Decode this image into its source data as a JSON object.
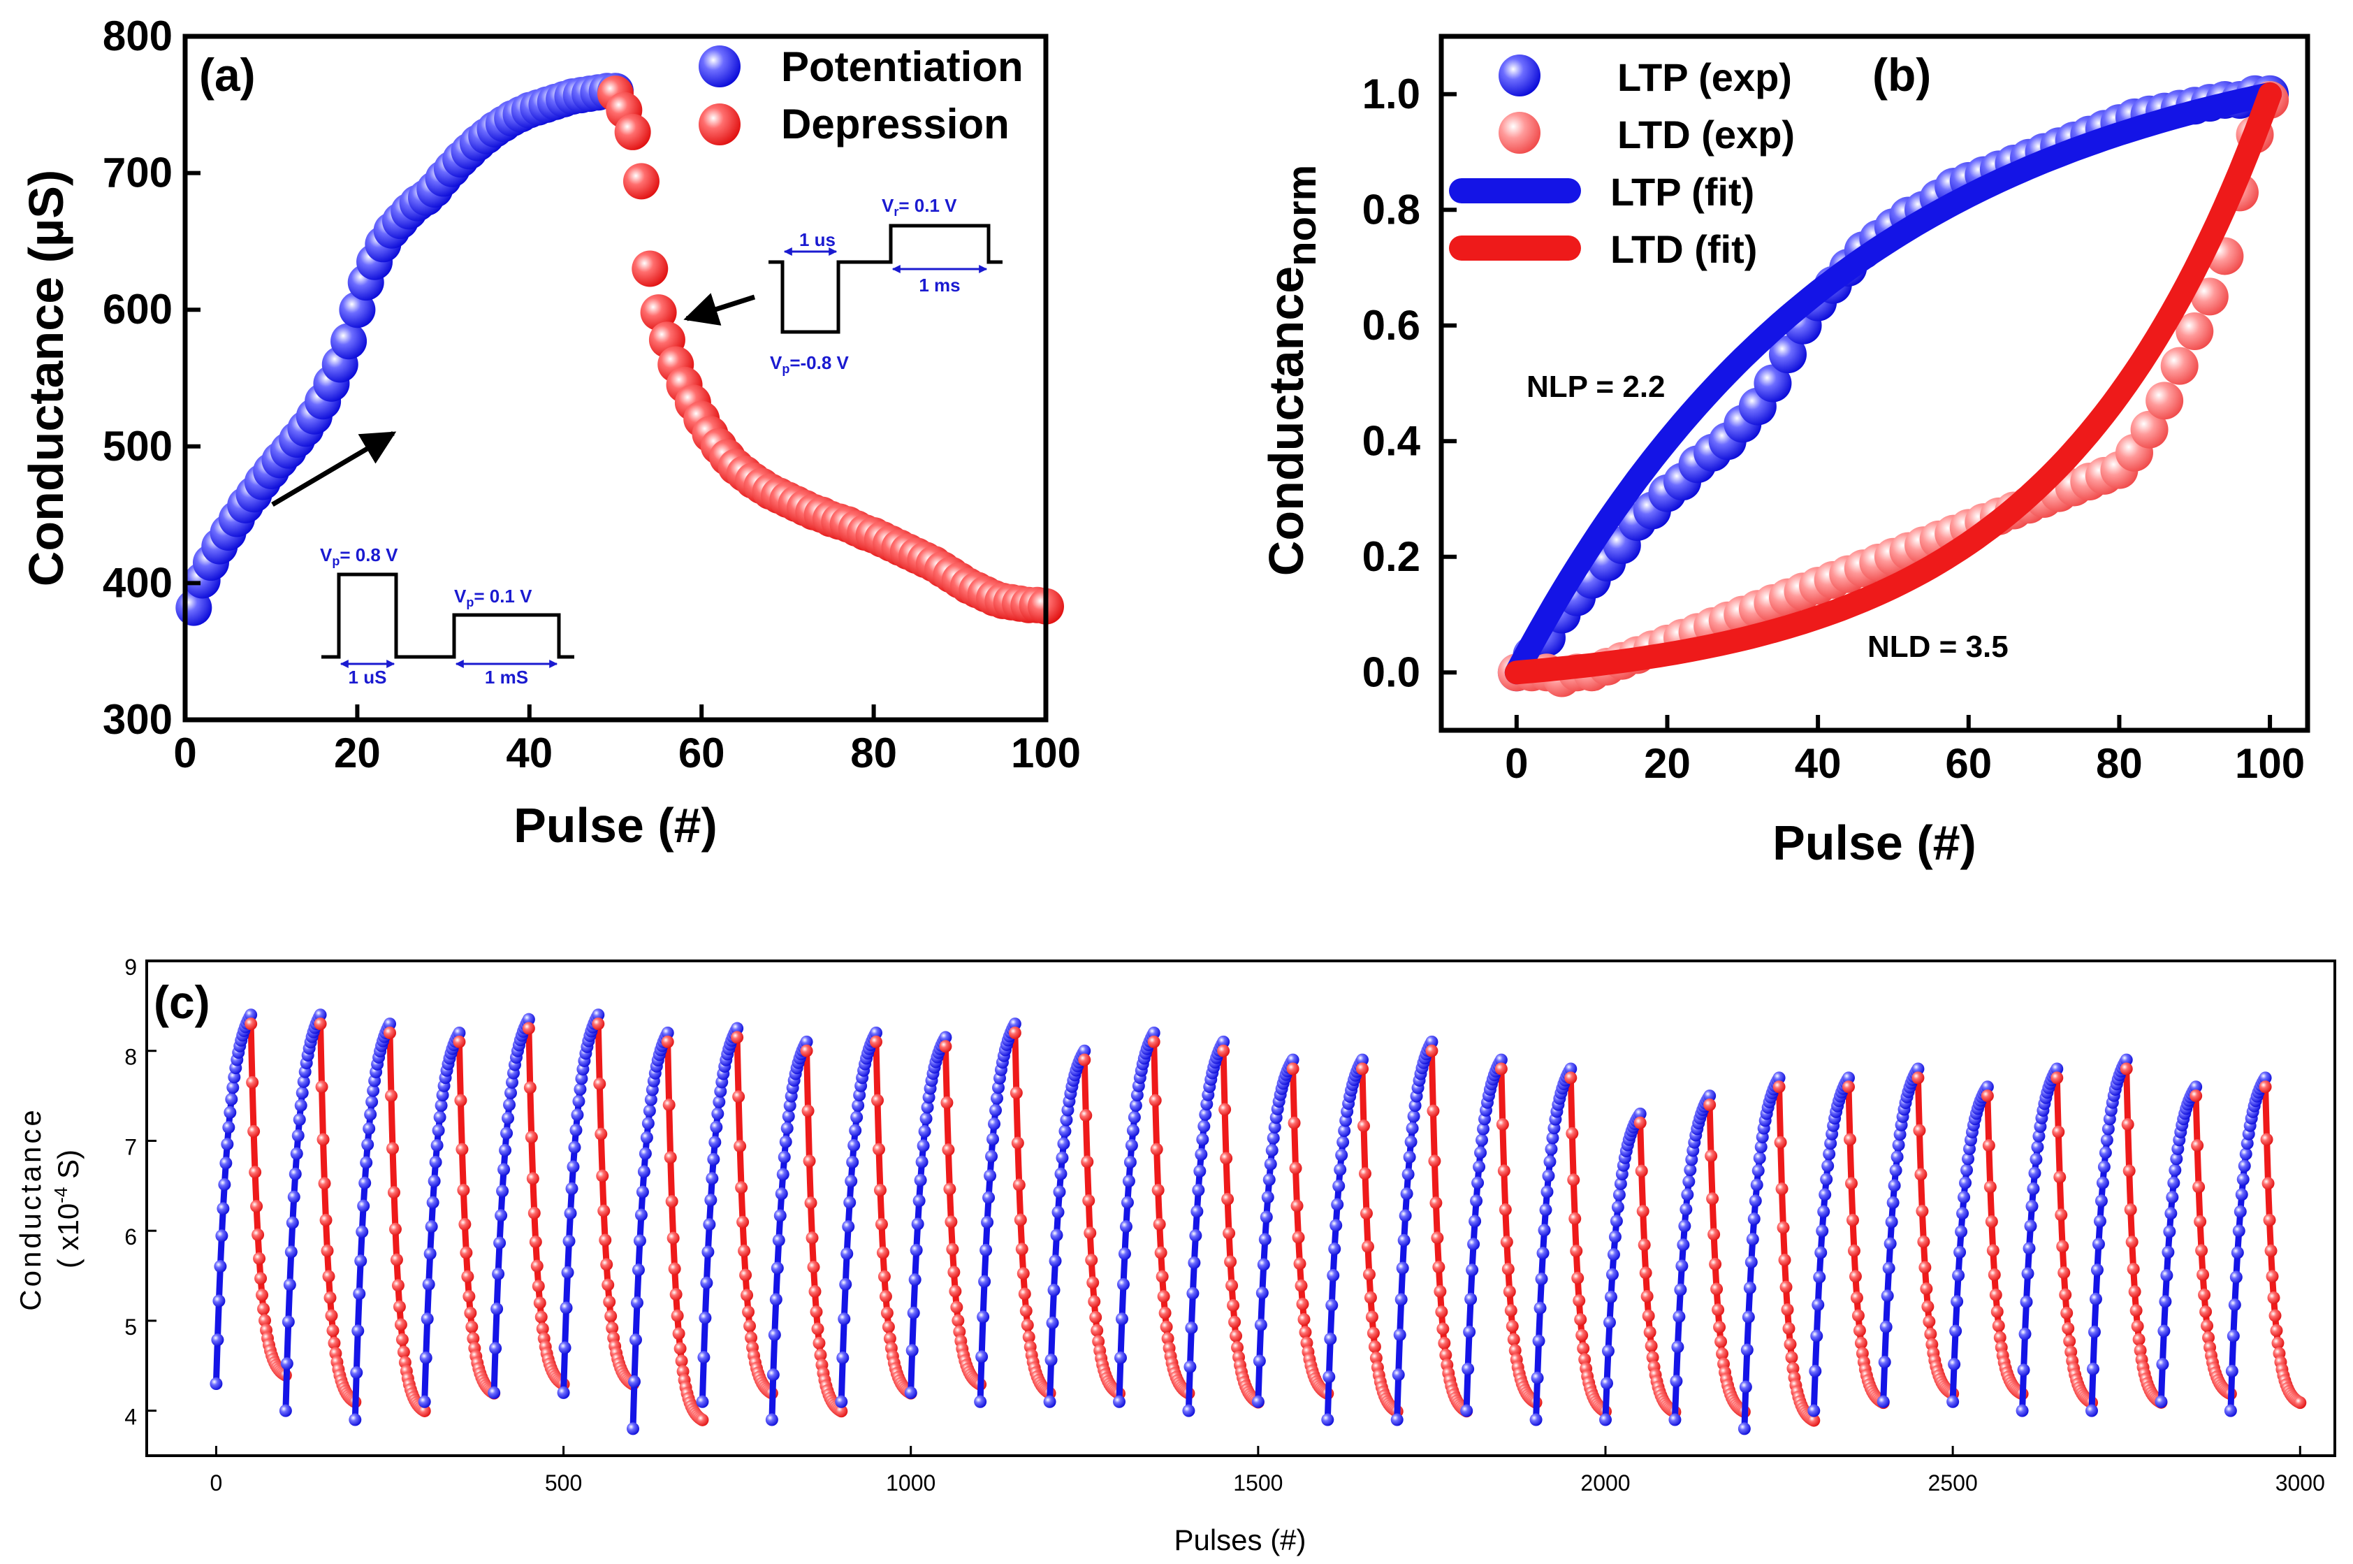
{
  "colors": {
    "blue": "#1414e6",
    "red": "#ee1a1a",
    "black": "#000000",
    "inset_blue": "#1a1ad0"
  },
  "chart_data": [
    {
      "panel": "(a)",
      "type": "scatter",
      "xlabel": "Pulse (#)",
      "ylabel": "Conductance (µS)",
      "xlim": [
        0,
        100
      ],
      "ylim": [
        300,
        800
      ],
      "xticks": [
        "0",
        "20",
        "40",
        "60",
        "80",
        "100"
      ],
      "yticks": [
        "300",
        "400",
        "500",
        "600",
        "700",
        "800"
      ],
      "legend": [
        "Potentiation",
        "Depression"
      ],
      "series": [
        {
          "name": "Potentiation",
          "x": [
            1,
            2,
            3,
            4,
            5,
            6,
            7,
            8,
            9,
            10,
            11,
            12,
            13,
            14,
            15,
            16,
            17,
            18,
            19,
            20,
            21,
            22,
            23,
            24,
            25,
            26,
            27,
            28,
            29,
            30,
            31,
            32,
            33,
            34,
            35,
            36,
            37,
            38,
            39,
            40,
            41,
            42,
            43,
            44,
            45,
            46,
            47,
            48,
            49,
            50
          ],
          "values": [
            382,
            402,
            415,
            427,
            437,
            447,
            457,
            465,
            474,
            482,
            490,
            497,
            505,
            513,
            522,
            533,
            546,
            560,
            577,
            600,
            620,
            635,
            648,
            658,
            665,
            672,
            678,
            682,
            688,
            696,
            703,
            710,
            716,
            722,
            727,
            732,
            736,
            740,
            743,
            746,
            748,
            750,
            752,
            754,
            756,
            757,
            758,
            759,
            760,
            760
          ]
        },
        {
          "name": "Depression",
          "x": [
            50,
            51,
            52,
            53,
            54,
            55,
            56,
            57,
            58,
            59,
            60,
            61,
            62,
            63,
            64,
            65,
            66,
            67,
            68,
            69,
            70,
            71,
            72,
            73,
            74,
            75,
            76,
            77,
            78,
            79,
            80,
            81,
            82,
            83,
            84,
            85,
            86,
            87,
            88,
            89,
            90,
            91,
            92,
            93,
            94,
            95,
            96,
            97,
            98,
            99,
            100
          ],
          "values": [
            758,
            746,
            730,
            694,
            630,
            598,
            578,
            560,
            545,
            532,
            520,
            509,
            500,
            492,
            485,
            480,
            475,
            471,
            467,
            464,
            461,
            458,
            455,
            452,
            450,
            447,
            445,
            443,
            440,
            437,
            435,
            432,
            429,
            426,
            423,
            420,
            417,
            414,
            410,
            406,
            402,
            398,
            395,
            392,
            389,
            387,
            386,
            385,
            384,
            384,
            383
          ]
        }
      ],
      "insets": {
        "potentiation": {
          "vp": "V",
          "vp_sub": "p",
          "vp_rest": "= 0.8 V",
          "vr": "V",
          "vr_sub": "p",
          "vr_rest": "= 0.1 V",
          "t1": "1 uS",
          "t2": "1 mS"
        },
        "depression": {
          "vp": "V",
          "vp_sub": "p",
          "vp_rest": "=-0.8 V",
          "vr": "V",
          "vr_sub": "r",
          "vr_rest": "= 0.1 V",
          "t1": "1 us",
          "t2": "1 ms"
        }
      }
    },
    {
      "panel": "(b)",
      "type": "scatter",
      "xlabel": "Pulse (#)",
      "ylabel_main": "Conductance",
      "ylabel_sub": "norm",
      "xlim": [
        -10,
        105
      ],
      "ylim": [
        -0.1,
        1.1
      ],
      "xticks": [
        "0",
        "20",
        "40",
        "60",
        "80",
        "100"
      ],
      "yticks": [
        "0.0",
        "0.2",
        "0.4",
        "0.6",
        "0.8",
        "1.0"
      ],
      "legend": [
        "LTP (exp)",
        "LTD (exp)",
        "LTP (fit)",
        "LTD (fit)"
      ],
      "annotations": [
        "NLP = 2.2",
        "NLD = 3.5"
      ],
      "series": [
        {
          "name": "LTP (exp)",
          "x": [
            0,
            2,
            4,
            6,
            8,
            10,
            12,
            14,
            16,
            18,
            20,
            22,
            24,
            26,
            28,
            30,
            32,
            34,
            36,
            38,
            40,
            42,
            44,
            46,
            48,
            50,
            52,
            54,
            56,
            58,
            60,
            62,
            64,
            66,
            68,
            70,
            72,
            74,
            76,
            78,
            80,
            82,
            84,
            86,
            88,
            90,
            92,
            94,
            96,
            98,
            100
          ],
          "values": [
            0.0,
            0.03,
            0.06,
            0.1,
            0.13,
            0.16,
            0.19,
            0.22,
            0.26,
            0.28,
            0.31,
            0.33,
            0.36,
            0.38,
            0.4,
            0.43,
            0.46,
            0.5,
            0.55,
            0.6,
            0.64,
            0.67,
            0.7,
            0.73,
            0.75,
            0.77,
            0.79,
            0.8,
            0.82,
            0.84,
            0.85,
            0.86,
            0.87,
            0.88,
            0.89,
            0.9,
            0.91,
            0.92,
            0.93,
            0.94,
            0.95,
            0.96,
            0.965,
            0.97,
            0.975,
            0.98,
            0.985,
            0.99,
            0.99,
            1.0,
            1.0
          ]
        },
        {
          "name": "LTD (exp)",
          "x": [
            0,
            2,
            4,
            6,
            8,
            10,
            12,
            14,
            16,
            18,
            20,
            22,
            24,
            26,
            28,
            30,
            32,
            34,
            36,
            38,
            40,
            42,
            44,
            46,
            48,
            50,
            52,
            54,
            56,
            58,
            60,
            62,
            64,
            66,
            68,
            70,
            72,
            74,
            76,
            78,
            80,
            82,
            84,
            86,
            88,
            90,
            92,
            94,
            96,
            98,
            100
          ],
          "values": [
            0.0,
            0.0,
            0.0,
            -0.01,
            0.0,
            0.0,
            0.01,
            0.02,
            0.03,
            0.04,
            0.05,
            0.06,
            0.07,
            0.08,
            0.09,
            0.1,
            0.11,
            0.12,
            0.13,
            0.14,
            0.15,
            0.16,
            0.17,
            0.18,
            0.19,
            0.2,
            0.21,
            0.22,
            0.23,
            0.24,
            0.25,
            0.26,
            0.27,
            0.28,
            0.29,
            0.3,
            0.31,
            0.32,
            0.33,
            0.34,
            0.35,
            0.38,
            0.42,
            0.47,
            0.53,
            0.59,
            0.65,
            0.72,
            0.83,
            0.93,
            0.99
          ]
        },
        {
          "name": "LTP (fit)",
          "nonlinearity": 2.2,
          "direction": "up"
        },
        {
          "name": "LTD (fit)",
          "nonlinearity": 3.5,
          "direction": "down"
        }
      ]
    },
    {
      "panel": "(c)",
      "type": "scatter",
      "xlabel": "Pulses (#)",
      "ylabel_line1": "Conductance",
      "ylabel_line2": "( x10",
      "ylabel_exp": "-4",
      "ylabel_line2_end": " S)",
      "xlim": [
        -100,
        3050
      ],
      "ylim": [
        3.5,
        9.0
      ],
      "xticks": [
        "0",
        "500",
        "1000",
        "1500",
        "2000",
        "2500",
        "3000"
      ],
      "yticks": [
        "4",
        "5",
        "6",
        "7",
        "8",
        "9"
      ],
      "cycles": 30,
      "pulses_per_cycle": 100,
      "cycle_min": [
        4.3,
        4.0,
        3.9,
        4.1,
        4.2,
        4.2,
        3.8,
        4.1,
        3.9,
        4.1,
        4.2,
        4.1,
        4.1,
        4.1,
        4.0,
        4.1,
        3.9,
        3.9,
        4.0,
        3.9,
        3.9,
        3.9,
        3.8,
        4.0,
        4.1,
        4.1,
        4.0,
        4.0,
        4.1,
        4.0
      ],
      "cycle_max": [
        8.4,
        8.4,
        8.3,
        8.2,
        8.35,
        8.4,
        8.2,
        8.25,
        8.1,
        8.2,
        8.15,
        8.3,
        8.0,
        8.2,
        8.1,
        7.9,
        7.9,
        8.1,
        7.9,
        7.8,
        7.3,
        7.5,
        7.7,
        7.7,
        7.8,
        7.6,
        7.8,
        7.9,
        7.6,
        7.7
      ]
    }
  ]
}
